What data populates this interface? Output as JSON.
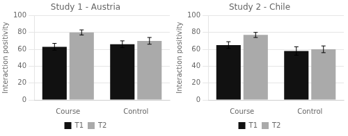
{
  "chart_data": [
    {
      "type": "bar",
      "title": "Study 1 - Austria",
      "categories": [
        "Course",
        "Control"
      ],
      "series": [
        {
          "name": "T1",
          "color": "#111111",
          "values": [
            63,
            66
          ],
          "errors": [
            4,
            4
          ]
        },
        {
          "name": "T2",
          "color": "#aaaaaa",
          "values": [
            80,
            70
          ],
          "errors": [
            3,
            4
          ]
        }
      ],
      "ylabel": "Interaction positivity",
      "ylim": [
        0,
        100
      ],
      "yticks": [
        0,
        20,
        40,
        60,
        80,
        100
      ],
      "grid": true,
      "legend": "bottom"
    },
    {
      "type": "bar",
      "title": "Study 2 - Chile",
      "categories": [
        "Course",
        "Control"
      ],
      "series": [
        {
          "name": "T1",
          "color": "#111111",
          "values": [
            65,
            58
          ],
          "errors": [
            4,
            5
          ]
        },
        {
          "name": "T2",
          "color": "#aaaaaa",
          "values": [
            77,
            60
          ],
          "errors": [
            3,
            4
          ]
        }
      ],
      "ylabel": "Interaction positivity",
      "ylim": [
        0,
        100
      ],
      "yticks": [
        0,
        20,
        40,
        60,
        80,
        100
      ],
      "grid": true,
      "legend": "bottom"
    }
  ]
}
